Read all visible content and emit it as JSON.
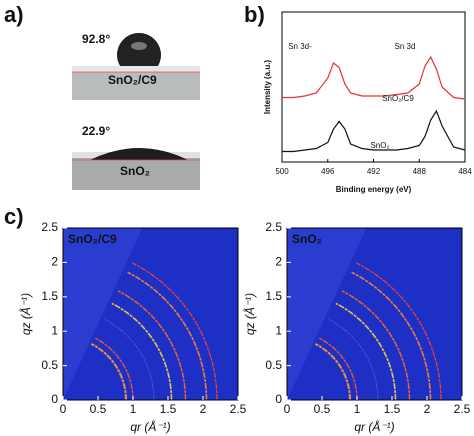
{
  "panel_labels": [
    "a)",
    "b)",
    "c)"
  ],
  "panel_a": {
    "top": {
      "angle": "92.8°",
      "label": "SnO₂/C9"
    },
    "bottom": {
      "angle": "22.9°",
      "label": "SnO₂"
    }
  },
  "chart_data": [
    {
      "type": "line",
      "xlabel": "Binding energy (eV)",
      "ylabel": "Intensity (a.u.)",
      "annotations": [
        "Sn 3d-",
        "Sn 3d"
      ],
      "x": [
        500,
        499,
        498,
        497,
        496,
        495.5,
        495,
        494.5,
        494,
        493,
        492,
        491,
        490,
        489,
        488,
        487.5,
        487,
        486.5,
        486,
        485,
        484
      ],
      "series": [
        {
          "name": "SnO₂/C9",
          "color": "#e8312b",
          "values": [
            4.3,
            4.3,
            4.4,
            4.6,
            5.6,
            6.6,
            6.3,
            5.2,
            4.6,
            4.4,
            4.4,
            4.4,
            4.5,
            4.6,
            5.2,
            6.4,
            7.0,
            6.2,
            5.0,
            4.3,
            4.2
          ]
        },
        {
          "name": "SnO₂",
          "color": "#111111",
          "values": [
            0.7,
            0.7,
            0.8,
            0.9,
            1.3,
            2.2,
            2.7,
            2.2,
            1.2,
            0.9,
            0.8,
            0.8,
            0.8,
            0.9,
            1.1,
            1.7,
            2.8,
            3.4,
            2.4,
            1.0,
            0.8
          ]
        }
      ],
      "xlim": [
        500,
        484
      ],
      "xticks": [
        500,
        496,
        492,
        488,
        484
      ],
      "ylim": [
        0,
        10
      ]
    },
    {
      "type": "image",
      "title": "SnO₂/C9",
      "xlabel": "qr (Å⁻¹)",
      "ylabel": "qz (Å⁻¹)",
      "xlim": [
        0,
        2.5
      ],
      "xticks": [
        0,
        0.5,
        1,
        1.5,
        2,
        2.5
      ],
      "ylim": [
        0,
        2.5
      ],
      "yticks": [
        0,
        0.5,
        1,
        1.5,
        2,
        2.5
      ]
    },
    {
      "type": "image",
      "title": "SnO₂",
      "xlabel": "qr (Å⁻¹)",
      "ylabel": "qz (Å⁻¹)",
      "xlim": [
        0,
        2.5
      ],
      "xticks": [
        0,
        0.5,
        1,
        1.5,
        2,
        2.5
      ],
      "ylim": [
        0,
        2.5
      ],
      "yticks": [
        0,
        0.5,
        1,
        1.5,
        2,
        2.5
      ]
    }
  ]
}
